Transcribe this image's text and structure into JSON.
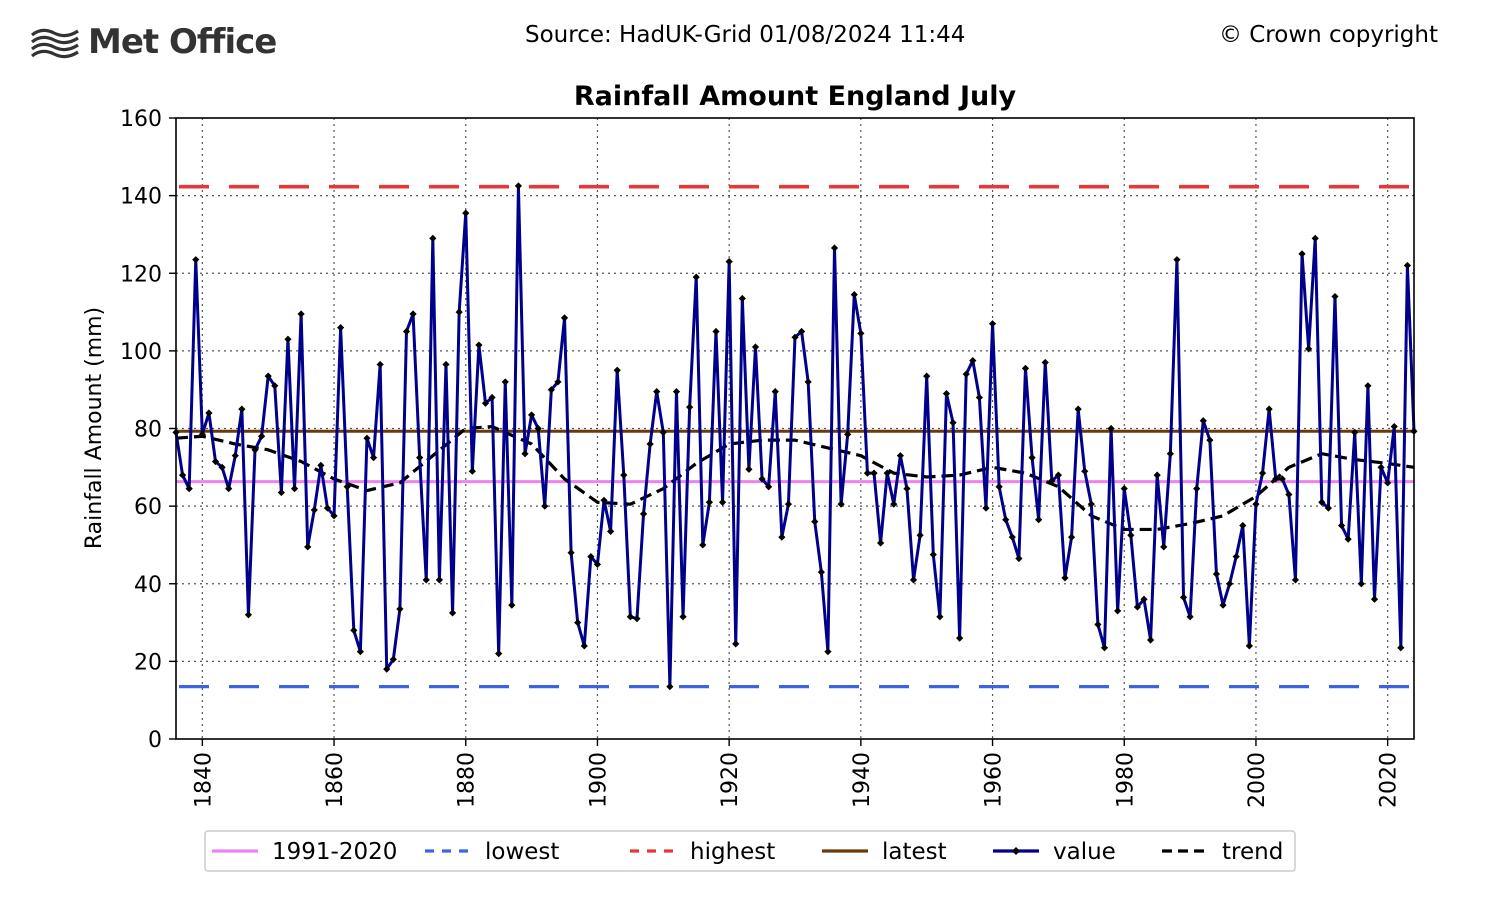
{
  "header": {
    "logo_text": "Met Office",
    "source": "Source: HadUK-Grid 01/08/2024 11:44",
    "copyright": "© Crown copyright"
  },
  "colors": {
    "value": "#00008b",
    "trend": "#000000",
    "mean": "#ee82ee",
    "lowest": "#3a64e6",
    "highest": "#e53935",
    "latest": "#6b3a0a"
  },
  "chart_data": {
    "type": "line",
    "title": "Rainfall Amount England July",
    "ylabel": "Rainfall Amount (mm)",
    "xlabel": "",
    "xlim": [
      1836,
      2024
    ],
    "ylim": [
      0,
      160
    ],
    "x_ticks": [
      1840,
      1860,
      1880,
      1900,
      1920,
      1940,
      1960,
      1980,
      2000,
      2020
    ],
    "y_ticks": [
      0,
      20,
      40,
      60,
      80,
      100,
      120,
      140,
      160
    ],
    "grid": true,
    "legend_position": "bottom",
    "legend": [
      "1991-2020",
      "lowest",
      "highest",
      "latest",
      "value",
      "trend"
    ],
    "reference_lines": {
      "1991-2020": 66.3,
      "lowest": 13.5,
      "highest": 142.3,
      "latest": 79.3
    },
    "series": [
      {
        "name": "value",
        "x_start": 1836,
        "values": [
          79,
          68,
          64.5,
          123.5,
          78.5,
          84,
          71.5,
          70,
          64.5,
          73,
          85,
          32,
          74.5,
          78,
          93.5,
          91,
          63.5,
          103,
          64.5,
          109.5,
          49.5,
          59,
          70.5,
          59.5,
          57.5,
          106,
          65,
          28,
          22.5,
          77.5,
          72.5,
          96.5,
          18,
          20.5,
          33.5,
          105,
          109.5,
          72.5,
          41,
          129,
          41,
          96.5,
          32.5,
          110,
          135.5,
          69,
          101.5,
          86.5,
          88,
          22,
          92,
          34.5,
          142.5,
          73.5,
          83.5,
          80,
          60,
          90,
          92,
          108.5,
          48,
          30,
          24,
          47,
          45,
          61.5,
          53.5,
          95,
          68,
          31.5,
          31,
          58,
          76,
          89.5,
          79,
          13.5,
          89.5,
          31.5,
          85.5,
          119,
          50,
          61,
          105,
          61,
          123,
          24.5,
          113.5,
          69.5,
          101,
          67,
          65,
          89.5,
          52,
          60.5,
          103.5,
          105,
          92,
          56,
          43,
          22.5,
          126.5,
          60.5,
          78.5,
          114.5,
          104.5,
          68.5,
          68.5,
          50.5,
          68.5,
          60.5,
          73,
          64.5,
          41,
          52.5,
          93.5,
          47.5,
          31.5,
          89,
          81.5,
          26,
          94,
          97.5,
          88,
          59.5,
          107,
          65,
          56.5,
          52,
          46.5,
          95.5,
          72.5,
          56.5,
          97,
          66.5,
          68,
          41.5,
          52,
          85,
          69,
          60.5,
          29.5,
          23.5,
          80,
          33,
          64.5,
          52.5,
          34,
          36,
          25.5,
          68,
          49.5,
          73.5,
          123.5,
          36.5,
          31.5,
          64.5,
          82,
          77,
          42.5,
          34.5,
          40,
          47,
          55,
          24,
          60.5,
          68.5,
          85,
          67,
          67,
          63,
          41,
          125,
          100.5,
          129,
          61,
          59.5,
          114,
          55,
          51.5,
          79,
          40,
          91,
          36,
          70,
          66,
          80.5,
          23.5,
          122,
          79.3
        ]
      },
      {
        "name": "trend",
        "points": [
          [
            1836,
            77.5
          ],
          [
            1840,
            78
          ],
          [
            1845,
            76
          ],
          [
            1850,
            74.5
          ],
          [
            1855,
            71.5
          ],
          [
            1860,
            67
          ],
          [
            1865,
            64
          ],
          [
            1870,
            66
          ],
          [
            1875,
            73
          ],
          [
            1880,
            80
          ],
          [
            1884,
            80.5
          ],
          [
            1890,
            76
          ],
          [
            1895,
            67
          ],
          [
            1900,
            61
          ],
          [
            1905,
            60.5
          ],
          [
            1910,
            64.5
          ],
          [
            1915,
            71
          ],
          [
            1920,
            76
          ],
          [
            1925,
            77
          ],
          [
            1930,
            77
          ],
          [
            1935,
            75
          ],
          [
            1940,
            73
          ],
          [
            1945,
            68.5
          ],
          [
            1950,
            67.5
          ],
          [
            1955,
            68
          ],
          [
            1960,
            70
          ],
          [
            1965,
            68.5
          ],
          [
            1970,
            65
          ],
          [
            1975,
            57.5
          ],
          [
            1980,
            54
          ],
          [
            1985,
            54
          ],
          [
            1990,
            55.5
          ],
          [
            1995,
            57.5
          ],
          [
            2000,
            62.5
          ],
          [
            2005,
            70
          ],
          [
            2010,
            73.5
          ],
          [
            2015,
            72
          ],
          [
            2020,
            71
          ],
          [
            2024,
            70
          ]
        ]
      }
    ]
  }
}
